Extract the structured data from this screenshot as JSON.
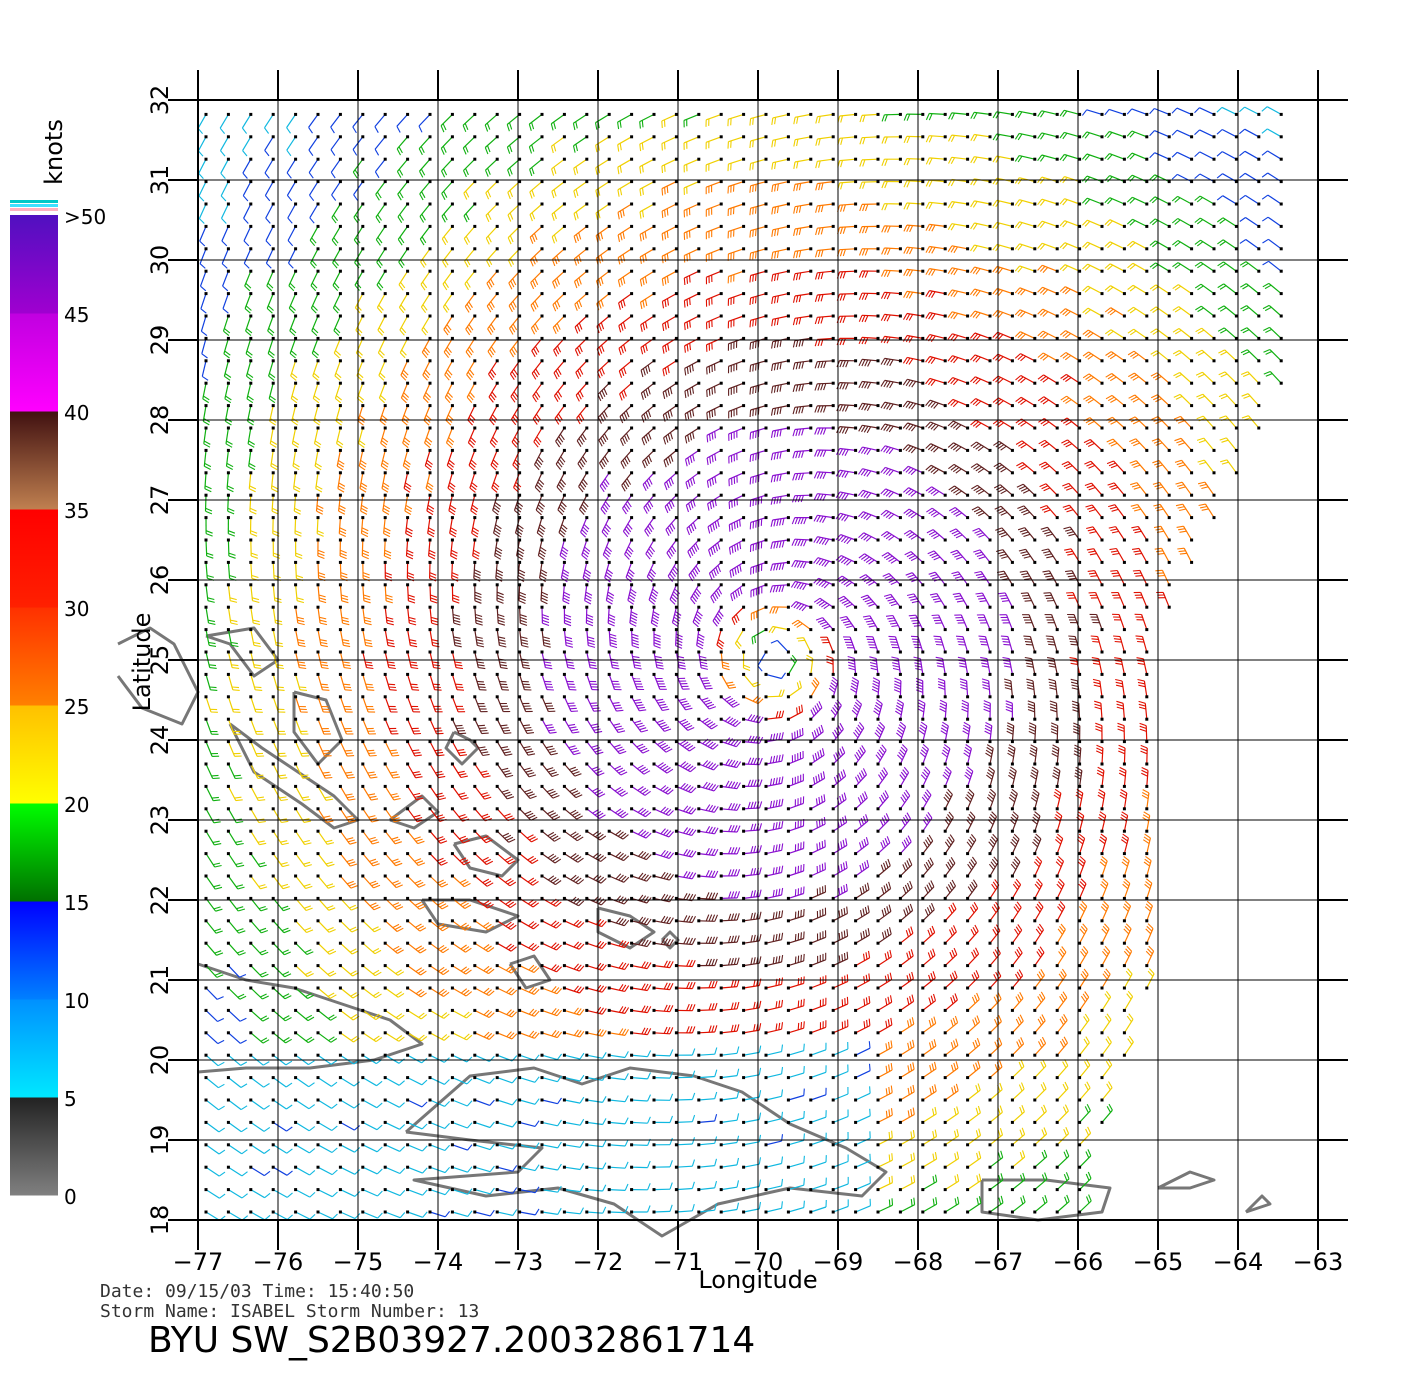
{
  "colorbar": {
    "title": "knots",
    "tick_labels": [
      ">50",
      "45",
      "40",
      "35",
      "30",
      "25",
      "20",
      "15",
      "10",
      "5",
      "0"
    ],
    "segments": [
      {
        "from": 0,
        "to": 5,
        "color_bottom": "#808080",
        "color_top": "#222222"
      },
      {
        "from": 5,
        "to": 10,
        "color_bottom": "#00e8ff",
        "color_top": "#0090ff"
      },
      {
        "from": 10,
        "to": 15,
        "color_bottom": "#0080ff",
        "color_top": "#0000ff"
      },
      {
        "from": 15,
        "to": 20,
        "color_bottom": "#007000",
        "color_top": "#00ff00"
      },
      {
        "from": 20,
        "to": 25,
        "color_bottom": "#ffff00",
        "color_top": "#ffc000"
      },
      {
        "from": 25,
        "to": 30,
        "color_bottom": "#ff8000",
        "color_top": "#ff3000"
      },
      {
        "from": 30,
        "to": 35,
        "color_bottom": "#ff2000",
        "color_top": "#ff0000"
      },
      {
        "from": 35,
        "to": 40,
        "color_bottom": "#c08050",
        "color_top": "#401010"
      },
      {
        "from": 40,
        "to": 45,
        "color_bottom": "#ff00ff",
        "color_top": "#c000e0"
      },
      {
        "from": 45,
        "to": 50,
        "color_bottom": "#a000d0",
        "color_top": "#5010c0"
      }
    ],
    "cap_colors": [
      "#00c8c8",
      "#40e0ff",
      "#ffb0c0"
    ]
  },
  "map": {
    "lon_range": [
      -77,
      -63
    ],
    "lat_range": [
      18,
      32
    ],
    "lon_ticks": [
      "−77",
      "−76",
      "−75",
      "−74",
      "−73",
      "−72",
      "−71",
      "−70",
      "−69",
      "−68",
      "−67",
      "−66",
      "−65",
      "−64",
      "−63"
    ],
    "lat_ticks": [
      "18",
      "19",
      "20",
      "21",
      "22",
      "23",
      "24",
      "25",
      "26",
      "27",
      "28",
      "29",
      "30",
      "31",
      "32"
    ],
    "xlabel": "Longitude",
    "ylabel": "Latitude",
    "grid": true,
    "storm_center": {
      "lon": -69.8,
      "lat": 25.0
    },
    "swath_note": "wind barbs over ocean; no data east of swath edge"
  },
  "info": {
    "line1": "Date: 09/15/03   Time: 15:40:50",
    "line2": "Storm Name: ISABEL   Storm Number: 13",
    "product": "BYU SW_S2B03927.20032861714"
  }
}
